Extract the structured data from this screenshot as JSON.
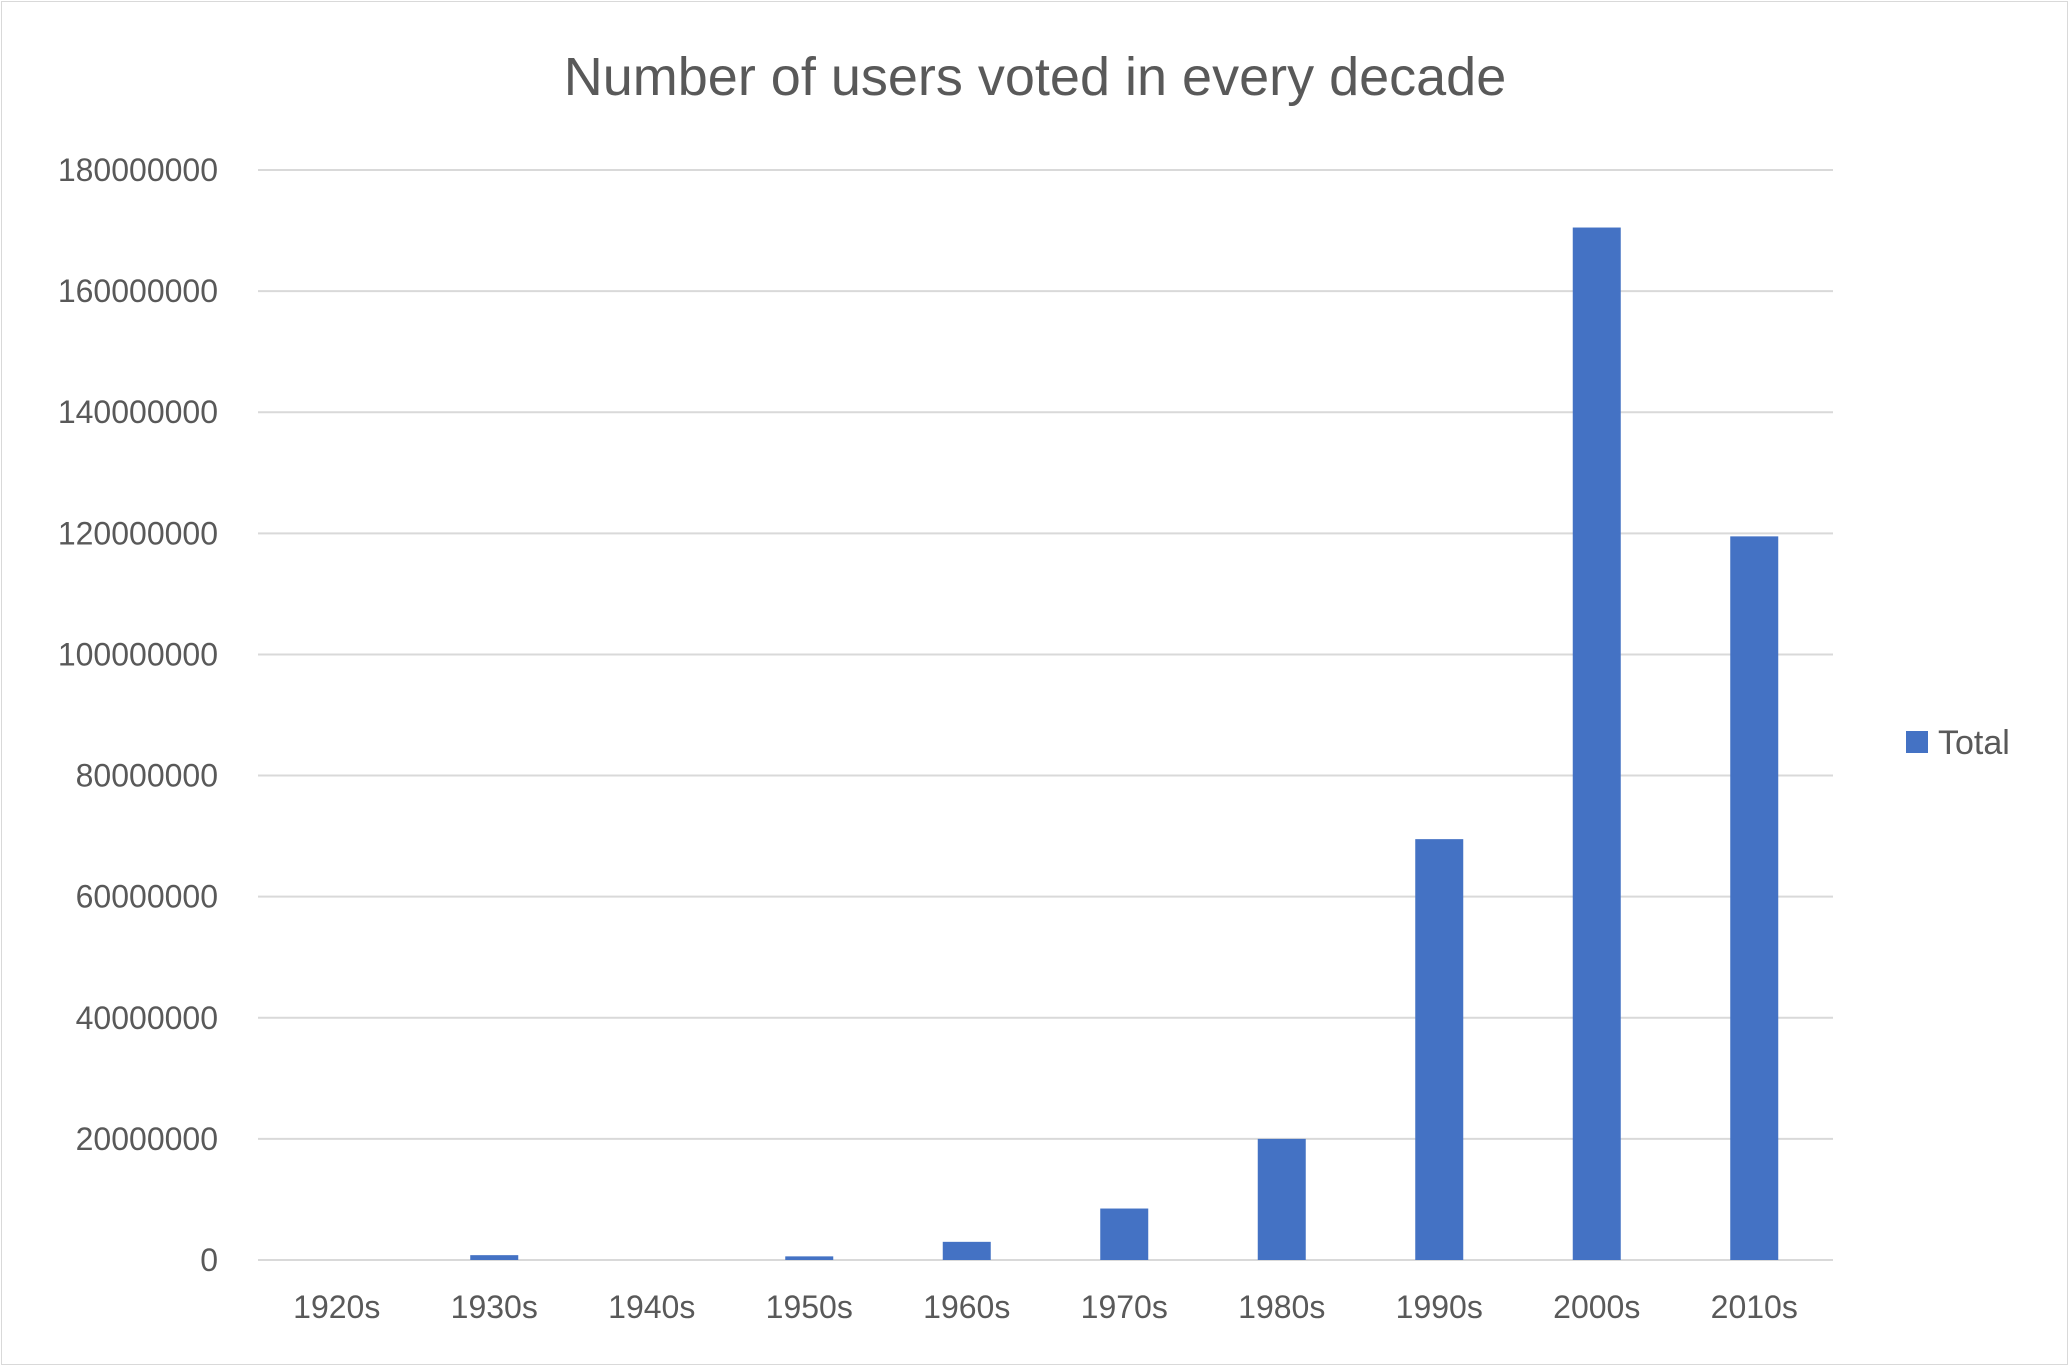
{
  "chart_data": {
    "type": "bar",
    "title": "Number of users voted in every decade",
    "categories": [
      "1920s",
      "1930s",
      "1940s",
      "1950s",
      "1960s",
      "1970s",
      "1980s",
      "1990s",
      "2000s",
      "2010s"
    ],
    "series": [
      {
        "name": "Total",
        "color": "#4472C4",
        "values": [
          0,
          800000,
          0,
          600000,
          3000000,
          8500000,
          20000000,
          69500000,
          170500000,
          119500000
        ]
      }
    ],
    "ylim": [
      0,
      180000000
    ],
    "yticks": [
      "0",
      "20000000",
      "40000000",
      "60000000",
      "80000000",
      "100000000",
      "120000000",
      "140000000",
      "160000000",
      "180000000"
    ],
    "grid": true,
    "legend_position": "right",
    "colors": {
      "bar": "#4472C4",
      "text": "#595959",
      "grid": "#d9d9d9",
      "border": "#d9d9d9"
    }
  }
}
